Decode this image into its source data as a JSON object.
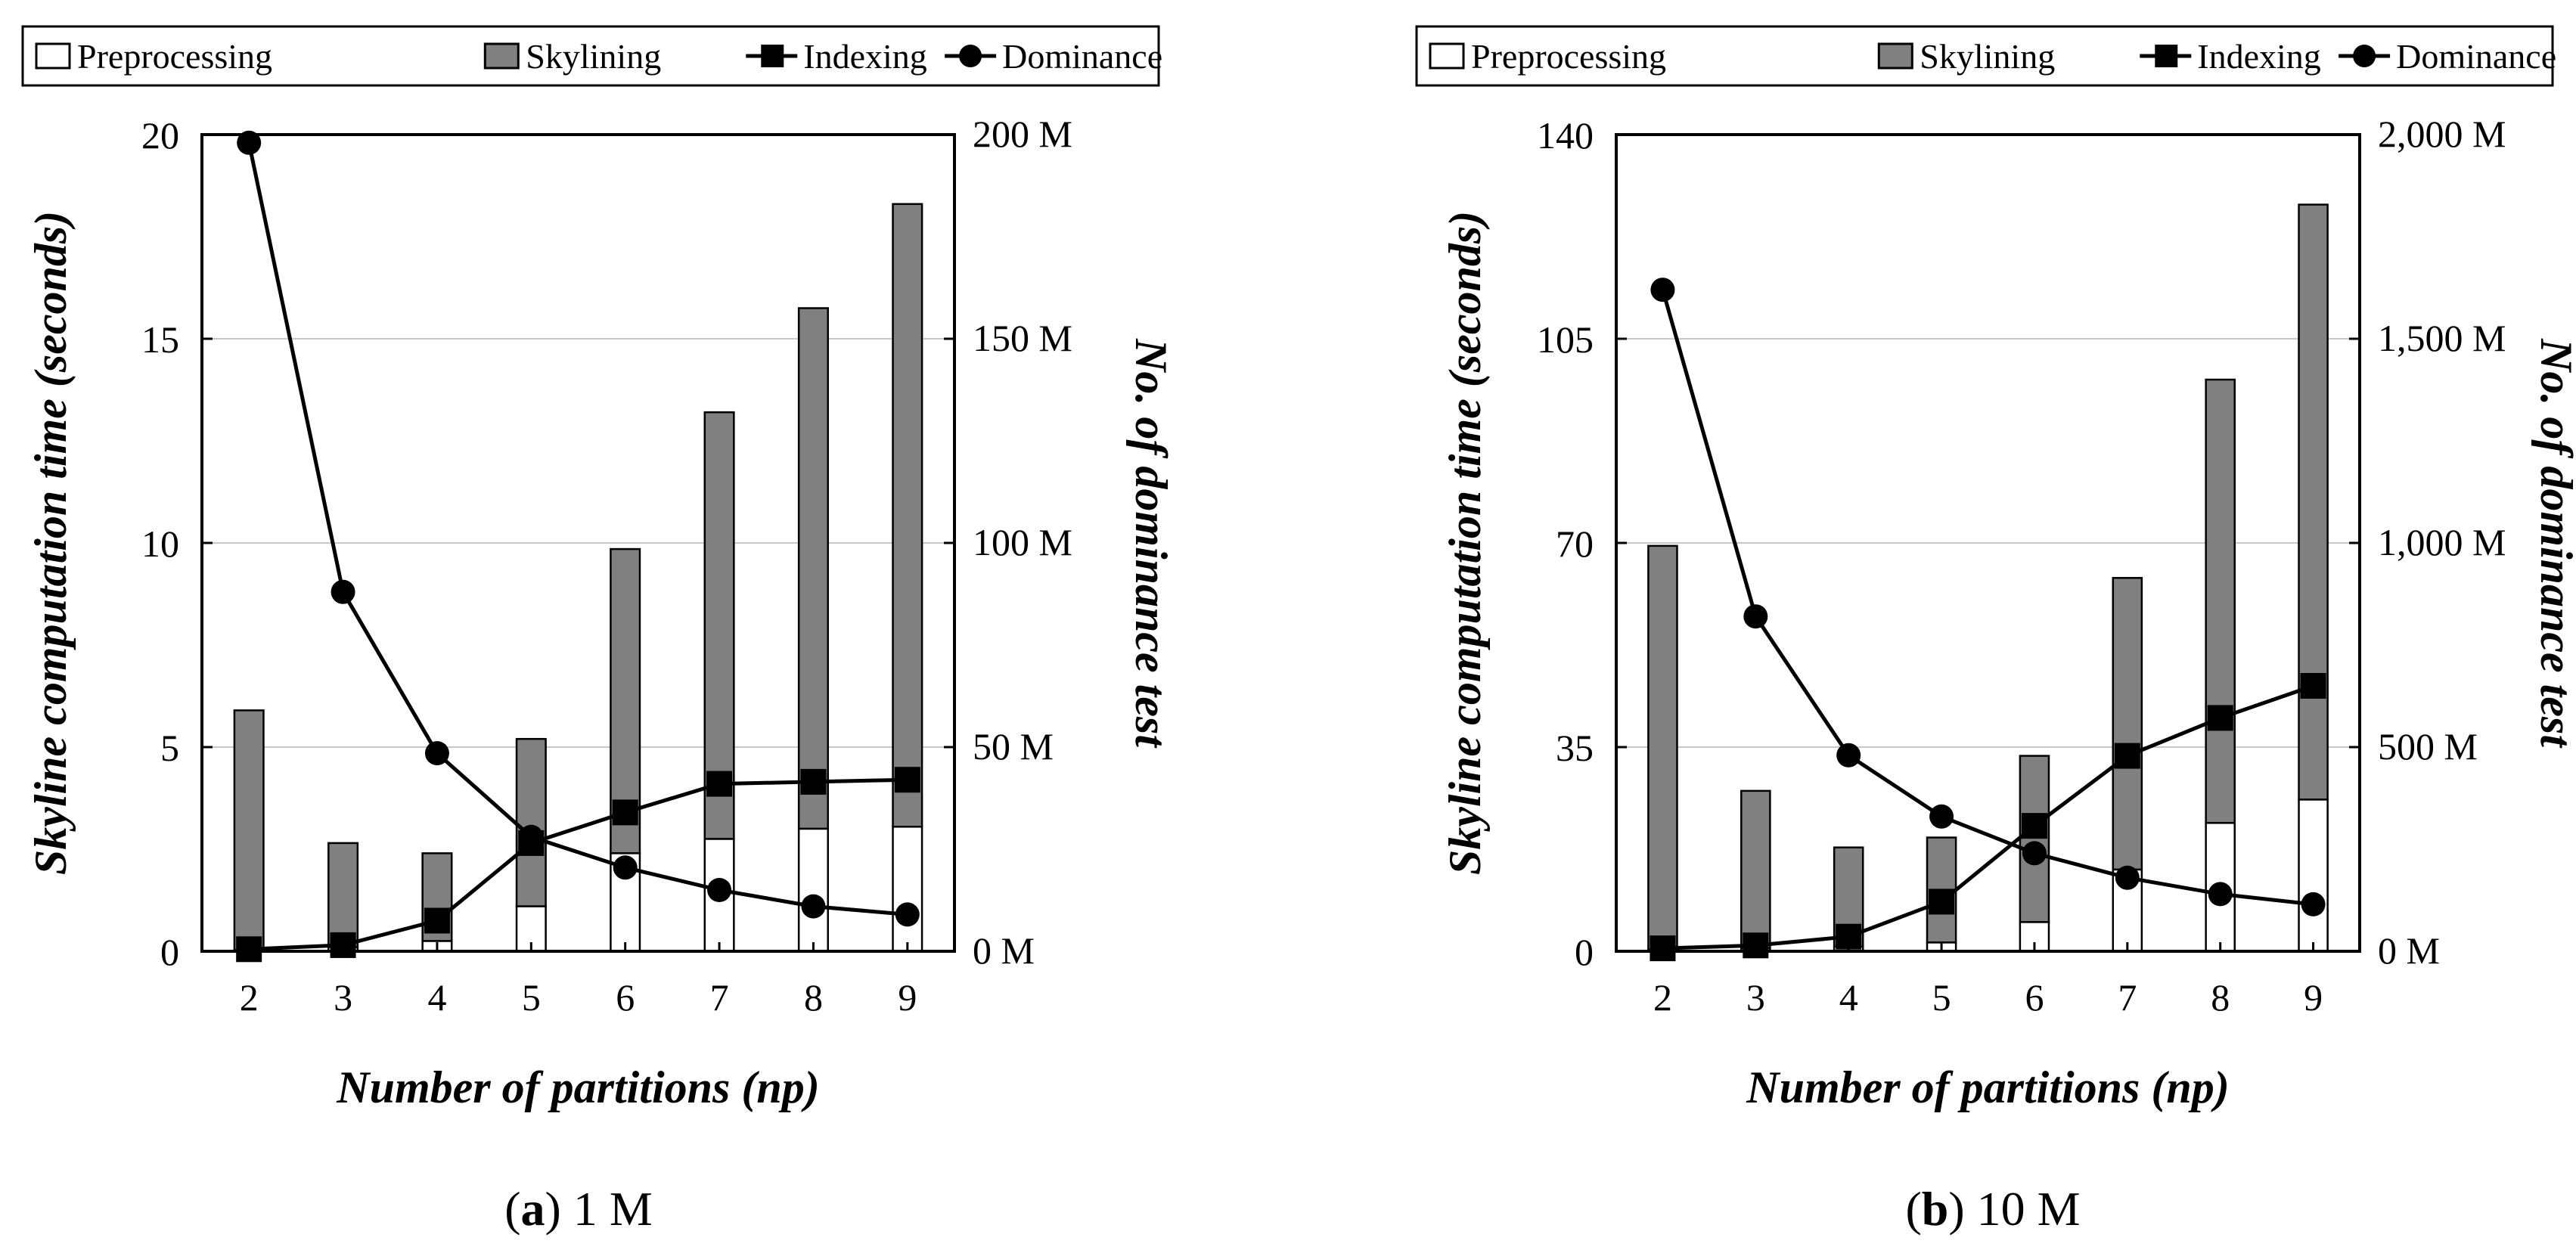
{
  "legend": {
    "items": [
      {
        "label": "Preprocessing",
        "icon": "white-box-icon"
      },
      {
        "label": "Skylining",
        "icon": "gray-box-icon"
      },
      {
        "label": "Indexing",
        "icon": "line-square-marker-icon"
      },
      {
        "label": "Dominance",
        "icon": "line-circle-marker-icon"
      }
    ]
  },
  "colors": {
    "preprocessing": "#ffffff",
    "skylining": "#808080",
    "line": "#000000",
    "grid": "#c8c8c8"
  },
  "chart_data": [
    {
      "type": "bar",
      "stacked": true,
      "caption_letter": "a",
      "caption_text": ") 1 M",
      "caption_open": "(",
      "xlabel": "Number of partitions (np)",
      "ylabel": "Skyline computation time (seconds)",
      "y2label": "No. of dominance test",
      "categories": [
        "2",
        "3",
        "4",
        "5",
        "6",
        "7",
        "8",
        "9"
      ],
      "ylim": [
        0,
        20
      ],
      "yticks": [
        "0",
        "5",
        "10",
        "15",
        "20"
      ],
      "y2lim": [
        0,
        200
      ],
      "y2ticks": [
        "0 M",
        "50 M",
        "100 M",
        "150 M",
        "200 M"
      ],
      "grid": true,
      "series": [
        {
          "name": "Preprocessing",
          "kind": "bar",
          "values": [
            0.03,
            0.1,
            0.25,
            1.1,
            2.4,
            2.75,
            3.0,
            3.05
          ]
        },
        {
          "name": "Skylining",
          "kind": "bar",
          "values": [
            5.87,
            2.55,
            2.15,
            4.1,
            7.45,
            10.45,
            12.75,
            15.25
          ]
        },
        {
          "name": "Indexing",
          "kind": "line",
          "axis": "left",
          "values": [
            0.05,
            0.15,
            0.75,
            2.65,
            3.4,
            4.1,
            4.15,
            4.2
          ]
        },
        {
          "name": "Dominance",
          "kind": "line",
          "axis": "right",
          "unit": "M",
          "values": [
            198,
            88,
            48.5,
            28,
            20.5,
            15,
            11,
            9
          ]
        }
      ]
    },
    {
      "type": "bar",
      "stacked": true,
      "caption_letter": "b",
      "caption_text": ") 10 M",
      "caption_open": "(",
      "xlabel": "Number of partitions (np)",
      "ylabel": "Skyline computation time (seconds)",
      "y2label": "No. of dominance test",
      "categories": [
        "2",
        "3",
        "4",
        "5",
        "6",
        "7",
        "8",
        "9"
      ],
      "ylim": [
        0,
        140
      ],
      "yticks": [
        "0",
        "35",
        "70",
        "105",
        "140"
      ],
      "y2lim": [
        0,
        2000
      ],
      "y2ticks": [
        "0 M",
        "500 M",
        "1,000 M",
        "1,500 M",
        "2,000 M"
      ],
      "grid": true,
      "series": [
        {
          "name": "Preprocessing",
          "kind": "bar",
          "values": [
            0.3,
            0.5,
            0.8,
            1.5,
            5.0,
            14.0,
            22.0,
            26.0
          ]
        },
        {
          "name": "Skylining",
          "kind": "bar",
          "values": [
            69.2,
            27.0,
            17.0,
            18.0,
            28.5,
            50.0,
            76.0,
            102.0
          ]
        },
        {
          "name": "Indexing",
          "kind": "line",
          "axis": "left",
          "values": [
            0.5,
            1.0,
            2.5,
            8.5,
            21.5,
            33.5,
            40.0,
            45.5
          ]
        },
        {
          "name": "Dominance",
          "kind": "line",
          "axis": "right",
          "unit": "M",
          "values": [
            1620,
            820,
            480,
            330,
            240,
            180,
            140,
            115
          ]
        }
      ]
    }
  ]
}
